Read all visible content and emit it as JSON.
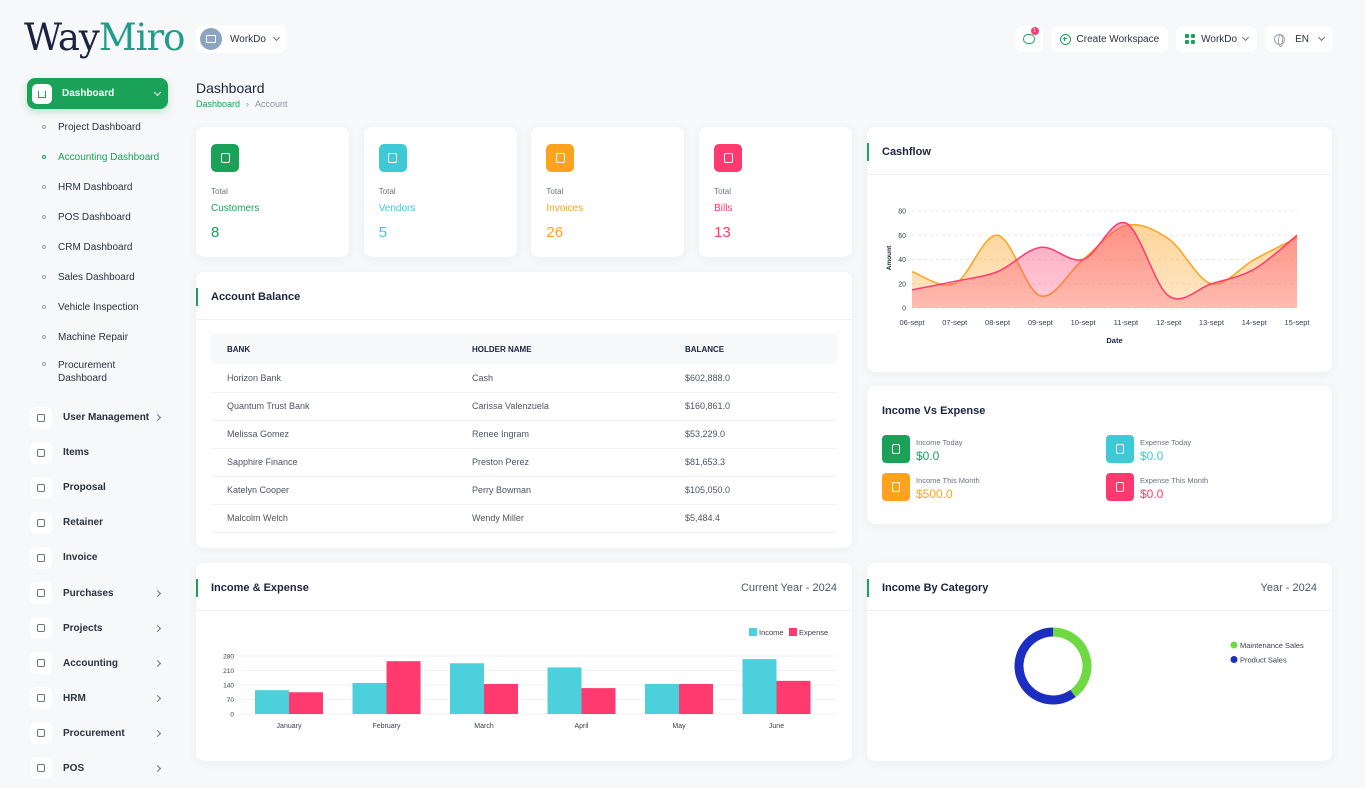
{
  "brand": {
    "part1": "Way",
    "part2": "Miro"
  },
  "workspace": {
    "name": "WorkDo"
  },
  "header": {
    "chat_badge": "1",
    "create_workspace": "Create Workspace",
    "workspace_switch": "WorkDo",
    "language": "EN"
  },
  "sidebar": {
    "active": "Dashboard",
    "subs": [
      "Project Dashboard",
      "Accounting Dashboard",
      "HRM Dashboard",
      "POS Dashboard",
      "CRM Dashboard",
      "Sales Dashboard",
      "Vehicle Inspection",
      "Machine Repair",
      "Procurement Dashboard"
    ],
    "menu": [
      {
        "label": "User Management",
        "icon": "users-icon",
        "arrow": true
      },
      {
        "label": "Items",
        "icon": "cart-icon",
        "arrow": false
      },
      {
        "label": "Proposal",
        "icon": "proposal-icon",
        "arrow": false
      },
      {
        "label": "Retainer",
        "icon": "retainer-icon",
        "arrow": false
      },
      {
        "label": "Invoice",
        "icon": "invoice-icon",
        "arrow": false
      },
      {
        "label": "Purchases",
        "icon": "cart-icon",
        "arrow": true
      },
      {
        "label": "Projects",
        "icon": "checklist-icon",
        "arrow": true
      },
      {
        "label": "Accounting",
        "icon": "grid-icon",
        "arrow": true
      },
      {
        "label": "HRM",
        "icon": "hrm-icon",
        "arrow": true
      },
      {
        "label": "Procurement",
        "icon": "procurement-icon",
        "arrow": true
      },
      {
        "label": "POS",
        "icon": "dots-grid-icon",
        "arrow": true
      }
    ]
  },
  "page": {
    "title": "Dashboard",
    "breadcrumb_home": "Dashboard",
    "breadcrumb_current": "Account"
  },
  "stats": [
    {
      "label": "Total",
      "name": "Customers",
      "value": "8",
      "color": "#1aa259",
      "icon": "users-icon"
    },
    {
      "label": "Total",
      "name": "Vendors",
      "value": "5",
      "color": "#3ec9d6",
      "icon": "note-icon"
    },
    {
      "label": "Total",
      "name": "Invoices",
      "value": "26",
      "color": "#ffa21d",
      "icon": "file-icon"
    },
    {
      "label": "Total",
      "name": "Bills",
      "value": "13",
      "color": "#ff3a6e",
      "icon": "bill-icon"
    }
  ],
  "account_balance": {
    "title": "Account Balance",
    "headers": [
      "BANK",
      "HOLDER NAME",
      "BALANCE"
    ],
    "rows": [
      [
        "Horizon Bank",
        "Cash",
        "$602,888.0"
      ],
      [
        "Quantum Trust Bank",
        "Carissa Valenzuela",
        "$160,861.0"
      ],
      [
        "Melissa Gomez",
        "Renee Ingram",
        "$53,229.0"
      ],
      [
        "Sapphire Finance",
        "Preston Perez",
        "$81,653.3"
      ],
      [
        "Katelyn Cooper",
        "Perry Bowman",
        "$105,050.0"
      ],
      [
        "Malcolm Welch",
        "Wendy Miller",
        "$5,484.4"
      ]
    ]
  },
  "cashflow": {
    "title": "Cashflow"
  },
  "income_vs_expense": {
    "title": "Income Vs Expense",
    "items": [
      {
        "label": "Income Today",
        "value": "$0.0",
        "color": "#1aa259"
      },
      {
        "label": "Expense Today",
        "value": "$0.0",
        "color": "#3ec9d6"
      },
      {
        "label": "Income This Month",
        "value": "$500.0",
        "color": "#ffa21d"
      },
      {
        "label": "Expense This Month",
        "value": "$0.0",
        "color": "#ff3a6e"
      }
    ]
  },
  "income_expense_card": {
    "title": "Income & Expense",
    "period": "Current Year - 2024"
  },
  "income_category_card": {
    "title": "Income By Category",
    "period": "Year - 2024"
  },
  "chart_data": [
    {
      "type": "area",
      "title": "Cashflow",
      "xlabel": "Date",
      "ylabel": "Amount",
      "x": [
        "06-sept",
        "07-sept",
        "08-sept",
        "09-sept",
        "10-sept",
        "11-sept",
        "12-sept",
        "13-sept",
        "14-sept",
        "15-sept"
      ],
      "series": [
        {
          "name": "",
          "color": "#ffa21d",
          "values": [
            30,
            20,
            60,
            10,
            40,
            68,
            57,
            20,
            40,
            58
          ]
        },
        {
          "name": "",
          "color": "#ff3a6e",
          "values": [
            15,
            22,
            30,
            50,
            40,
            70,
            10,
            20,
            32,
            60
          ]
        }
      ],
      "ylim": [
        0,
        80
      ],
      "yticks": [
        0,
        20,
        40,
        60,
        80
      ],
      "grid": true
    },
    {
      "type": "bar",
      "categories": [
        "January",
        "February",
        "March",
        "April",
        "May",
        "June"
      ],
      "series": [
        {
          "name": "Income",
          "color": "#4cd0db",
          "values": [
            115,
            150,
            245,
            225,
            145,
            265
          ]
        },
        {
          "name": "Expense",
          "color": "#ff3a6e",
          "values": [
            105,
            255,
            145,
            125,
            145,
            160
          ]
        }
      ],
      "ylim": [
        0,
        280
      ],
      "yticks": [
        0,
        70,
        140,
        210,
        280
      ],
      "legend": "top-right"
    },
    {
      "type": "pie",
      "donut": true,
      "labels": [
        "Maintenance Sales",
        "Product Sales"
      ],
      "values": [
        40,
        60
      ],
      "colors": [
        "#6fd943",
        "#1b2ebf"
      ],
      "legend": "right"
    }
  ]
}
